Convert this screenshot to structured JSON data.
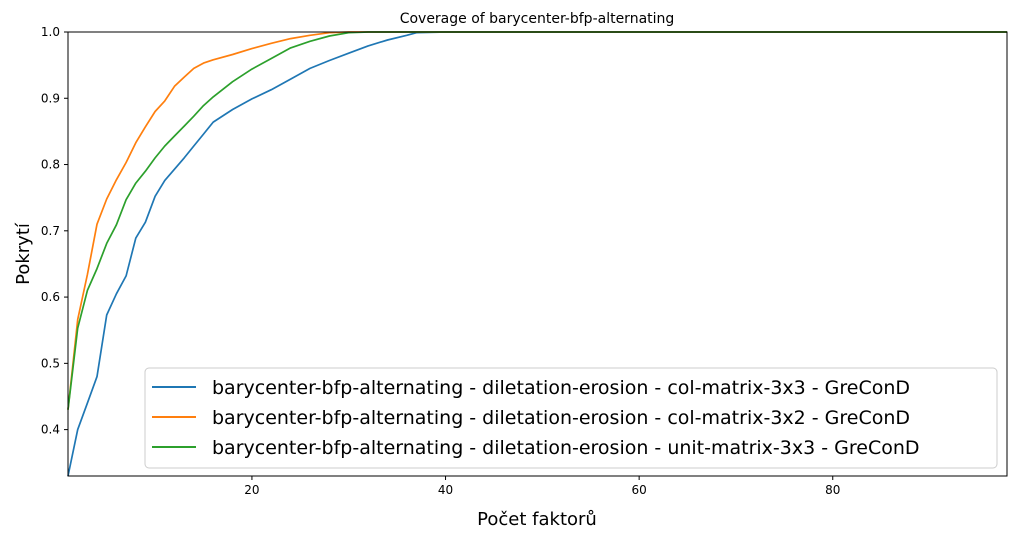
{
  "chart_data": {
    "type": "line",
    "title": "Coverage of barycenter-bfp-alternating",
    "xlabel": "Počet faktorů",
    "ylabel": "Pokrytí",
    "xlim": [
      1,
      98
    ],
    "ylim": [
      0.33,
      1.0
    ],
    "xticks": [
      20,
      40,
      60,
      80
    ],
    "xtick_labels": [
      "20",
      "40",
      "60",
      "80"
    ],
    "yticks": [
      0.4,
      0.5,
      0.6,
      0.7,
      0.8,
      0.9,
      1.0
    ],
    "ytick_labels": [
      "0.4",
      "0.5",
      "0.6",
      "0.7",
      "0.8",
      "0.9",
      "1.0"
    ],
    "grid": false,
    "legend_position": "lower-right",
    "series": [
      {
        "name": "barycenter-bfp-alternating - diletation-erosion - col-matrix-3x3 - GreConD",
        "color": "#1f77b4",
        "x": [
          1,
          2,
          3,
          4,
          5,
          6,
          7,
          8,
          9,
          10,
          11,
          12,
          13,
          14,
          15,
          16,
          18,
          20,
          22,
          24,
          26,
          28,
          30,
          32,
          34,
          36,
          37,
          40,
          98
        ],
        "y": [
          0.33,
          0.4,
          0.44,
          0.48,
          0.573,
          0.605,
          0.632,
          0.689,
          0.713,
          0.752,
          0.776,
          0.793,
          0.81,
          0.828,
          0.846,
          0.864,
          0.883,
          0.899,
          0.913,
          0.929,
          0.945,
          0.957,
          0.968,
          0.979,
          0.988,
          0.995,
          0.999,
          1.0,
          1.0
        ]
      },
      {
        "name": "barycenter-bfp-alternating - diletation-erosion - col-matrix-3x2 - GreConD",
        "color": "#ff7f0e",
        "x": [
          1,
          2,
          3,
          4,
          5,
          6,
          7,
          8,
          9,
          10,
          11,
          12,
          13,
          14,
          15,
          16,
          18,
          20,
          22,
          24,
          26,
          28,
          30,
          98
        ],
        "y": [
          0.43,
          0.566,
          0.634,
          0.71,
          0.748,
          0.777,
          0.803,
          0.833,
          0.857,
          0.88,
          0.896,
          0.918,
          0.932,
          0.945,
          0.953,
          0.958,
          0.966,
          0.975,
          0.983,
          0.99,
          0.995,
          0.999,
          1.0,
          1.0
        ]
      },
      {
        "name": "barycenter-bfp-alternating - diletation-erosion - unit-matrix-3x3 - GreConD",
        "color": "#2ca02c",
        "x": [
          1,
          2,
          3,
          4,
          5,
          6,
          7,
          8,
          9,
          10,
          11,
          12,
          13,
          14,
          15,
          16,
          18,
          20,
          22,
          24,
          26,
          28,
          30,
          32,
          98
        ],
        "y": [
          0.43,
          0.553,
          0.61,
          0.643,
          0.681,
          0.709,
          0.747,
          0.772,
          0.79,
          0.81,
          0.828,
          0.843,
          0.858,
          0.873,
          0.889,
          0.902,
          0.925,
          0.944,
          0.96,
          0.976,
          0.986,
          0.994,
          0.999,
          1.0,
          1.0
        ]
      }
    ]
  }
}
